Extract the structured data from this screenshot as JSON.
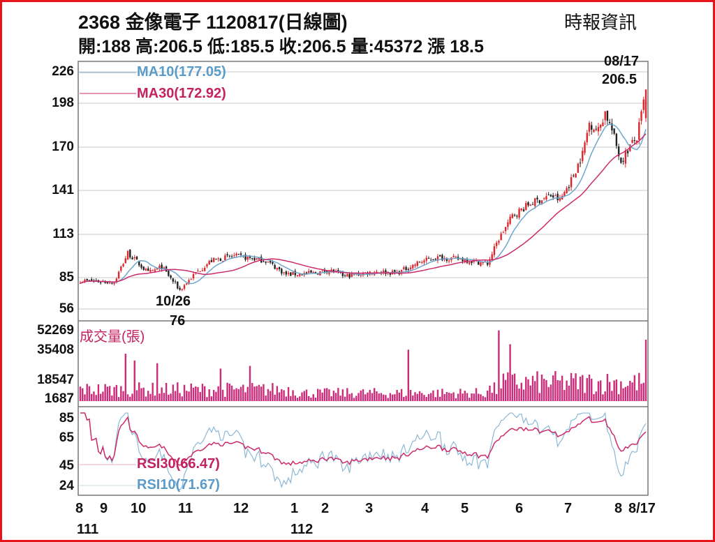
{
  "header": {
    "title": "2368  金像電子 1120817(日線圖)",
    "source": "時報資訊",
    "ohlc_line": "開:188 高:206.5 低:185.5 收:206.5 量:45372 漲 18.5"
  },
  "chart_data": {
    "type": "candlestick",
    "title": "2368 金像電子 1120817(日線圖)",
    "last": {
      "open": 188,
      "high": 206.5,
      "low": 185.5,
      "close": 206.5,
      "volume": 45372,
      "change": 18.5
    },
    "price_ticks": [
      "226",
      "198",
      "170",
      "141",
      "113",
      "85",
      "56"
    ],
    "volume_ticks": [
      "52269",
      "35408",
      "18547",
      "1687"
    ],
    "rsi_ticks": [
      "85",
      "65",
      "45",
      "24"
    ],
    "x_labels": [
      "8",
      "9",
      "10",
      "11",
      "12",
      "1",
      "2",
      "3",
      "4",
      "5",
      "6",
      "7",
      "8",
      "8/17"
    ],
    "year_labels": [
      "111",
      "112"
    ],
    "legend": {
      "ma10": "MA10(177.05)",
      "ma30": "MA30(172.92)",
      "volume": "成交量(張)",
      "rsi30": "RSI30(66.47)",
      "rsi10": "RSI10(71.67)"
    },
    "annotations": {
      "high_date": "08/17",
      "high_value": "206.5",
      "low_date": "10/26",
      "low_value": "76"
    },
    "colors": {
      "up": "#e0252b",
      "down": "#222222",
      "ma10": "#6fa6cc",
      "ma30": "#cc2b6b",
      "volume": "#cc2b7a",
      "frame": "#e8141b"
    },
    "n_days": 251,
    "close_keypoints": [
      [
        0,
        83
      ],
      [
        15,
        82
      ],
      [
        21,
        101
      ],
      [
        30,
        88
      ],
      [
        36,
        92
      ],
      [
        44,
        77
      ],
      [
        51,
        88
      ],
      [
        58,
        96
      ],
      [
        68,
        99
      ],
      [
        82,
        96
      ],
      [
        91,
        87
      ],
      [
        104,
        88
      ],
      [
        110,
        90
      ],
      [
        117,
        86
      ],
      [
        131,
        89
      ],
      [
        140,
        88
      ],
      [
        150,
        95
      ],
      [
        157,
        98
      ],
      [
        168,
        97
      ],
      [
        180,
        94
      ],
      [
        185,
        110
      ],
      [
        191,
        125
      ],
      [
        199,
        133
      ],
      [
        208,
        138
      ],
      [
        212,
        135
      ],
      [
        217,
        148
      ],
      [
        222,
        165
      ],
      [
        225,
        185
      ],
      [
        229,
        180
      ],
      [
        232,
        192
      ],
      [
        235,
        180
      ],
      [
        239,
        160
      ],
      [
        243,
        170
      ],
      [
        246,
        175
      ],
      [
        248,
        190
      ],
      [
        250,
        206.5
      ]
    ],
    "volume_spikes": [
      [
        20,
        35000
      ],
      [
        24,
        30000
      ],
      [
        34,
        28000
      ],
      [
        62,
        24000
      ],
      [
        75,
        26000
      ],
      [
        145,
        38000
      ],
      [
        185,
        52269
      ],
      [
        190,
        42000
      ],
      [
        250,
        45372
      ]
    ]
  }
}
